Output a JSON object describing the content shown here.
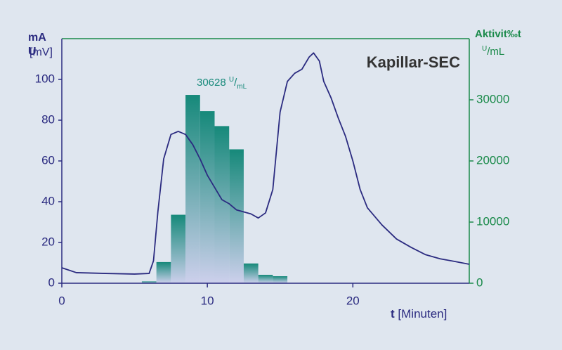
{
  "chart_data": [
    {
      "type": "line",
      "title": "Kapillar-SEC",
      "xlabel": {
        "symbol": "t",
        "unit": "[Minuten]"
      },
      "ylabel": {
        "quantity": "mA U",
        "unit": "[mV]"
      },
      "annotation": {
        "value": 30628,
        "sup": "U",
        "sep": "/",
        "sub": "mL"
      },
      "x": [
        0,
        1,
        3,
        5,
        6,
        6.3,
        6.6,
        7,
        7.5,
        8,
        8.5,
        9,
        9.5,
        10,
        10.5,
        11,
        11.5,
        12,
        13,
        13.5,
        14,
        14.5,
        15,
        15.5,
        16,
        16.5,
        17,
        17.3,
        17.7,
        18,
        18.5,
        19,
        19.5,
        20,
        20.5,
        21,
        22,
        23,
        24,
        25,
        26,
        27,
        28
      ],
      "values": [
        7.6,
        5.2,
        4.8,
        4.5,
        4.8,
        11,
        35,
        61,
        73,
        74.5,
        73,
        68,
        61,
        53,
        47,
        41,
        39,
        36,
        34,
        32,
        34.5,
        46,
        84,
        99,
        103,
        105,
        111,
        113,
        109,
        99,
        91,
        81,
        72,
        60,
        46,
        37,
        28.6,
        21.7,
        17.6,
        14,
        12,
        10.7,
        9.3
      ],
      "color": "#2b2b80",
      "xlim": [
        0,
        28
      ],
      "xticks": [
        0,
        10,
        20
      ],
      "ylim": [
        0,
        120
      ],
      "yticks": [
        0,
        20,
        40,
        60,
        80,
        100
      ]
    },
    {
      "type": "histogram",
      "ylabel": {
        "quantity": "Aktivit‰t",
        "sup": "U",
        "unit": "/mL"
      },
      "bins": [
        5.5,
        6.5,
        7.5,
        8.5,
        9.5,
        10.5,
        11.5,
        12.5,
        13.5,
        14.5,
        15.5
      ],
      "counts": [
        300,
        3460,
        11200,
        30800,
        28150,
        25700,
        21900,
        3230,
        1380,
        1150
      ],
      "color_top": "#16897a",
      "color_bottom": "#cdd0ec",
      "axis_color": "#1a8a4a",
      "yaxis": "right",
      "ylim": [
        0,
        40000
      ],
      "yticks": [
        0,
        10000,
        20000,
        30000
      ]
    }
  ]
}
